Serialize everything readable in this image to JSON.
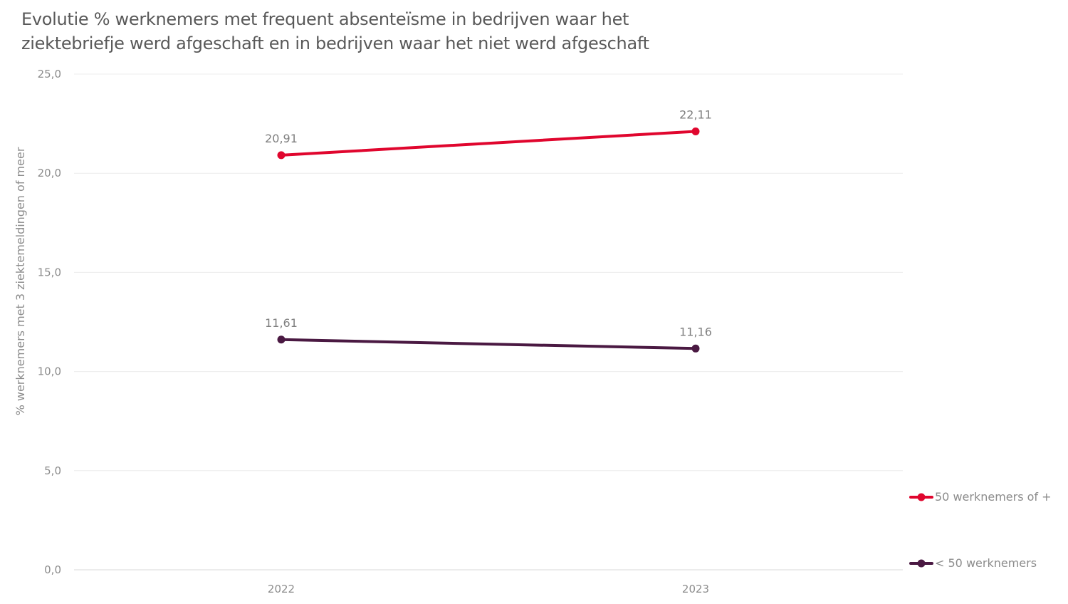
{
  "chart_data": {
    "type": "line",
    "title_lines": [
      "Evolutie % werknemers met frequent absenteïsme in bedrijven waar het",
      "ziektebriefje werd afgeschaft en in bedrijven waar het niet werd afgeschaft"
    ],
    "ylabel": "% werknemers met 3 ziektemeldingen of meer",
    "xlabel": "",
    "categories": [
      "2022",
      "2023"
    ],
    "ylim": [
      0,
      25
    ],
    "yticks": [
      "0,0",
      "5,0",
      "10,0",
      "15,0",
      "20,0",
      "25,0"
    ],
    "grid": true,
    "legend_position": "right",
    "series": [
      {
        "name": "50 werknemers of +",
        "values": [
          20.91,
          22.11
        ],
        "labels": [
          "20,91",
          "22,11"
        ],
        "color": "#e0062e"
      },
      {
        "name": "< 50 werknemers",
        "values": [
          11.61,
          11.16
        ],
        "labels": [
          "11,61",
          "11,16"
        ],
        "color": "#4a1942"
      }
    ]
  }
}
